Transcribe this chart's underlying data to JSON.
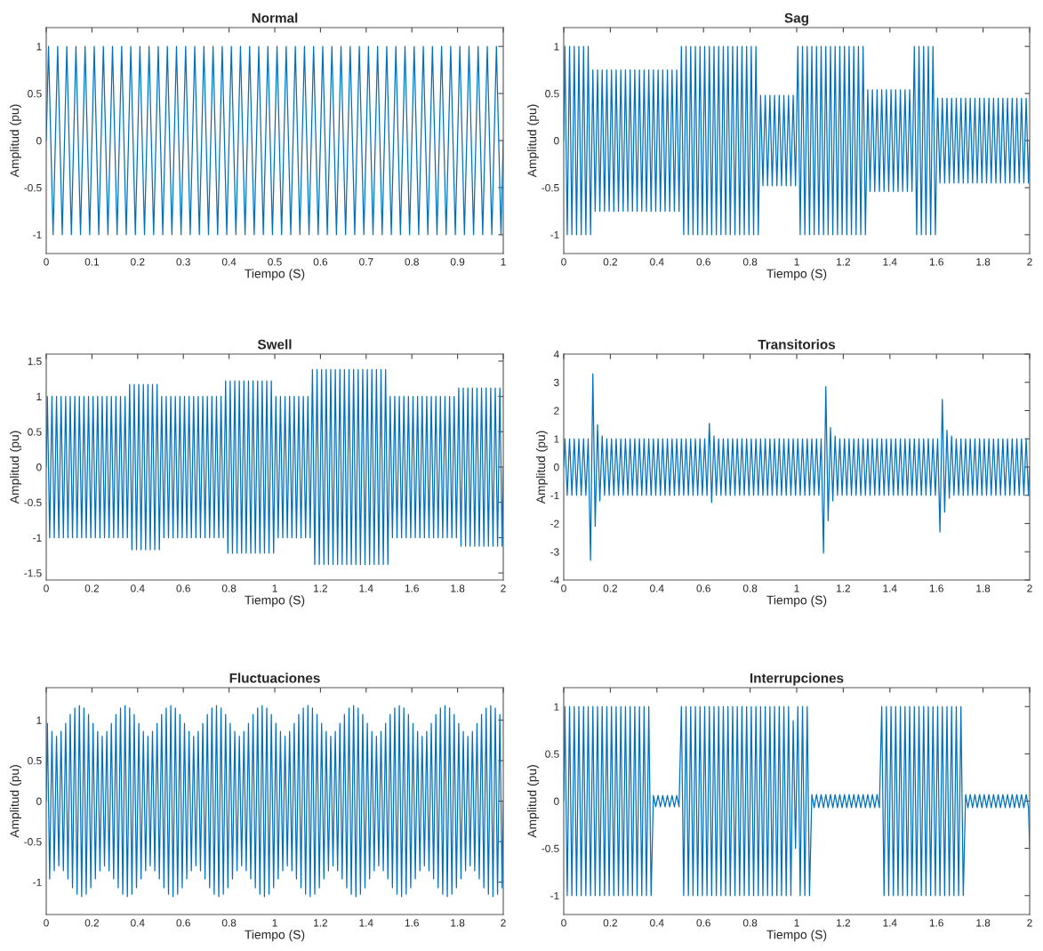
{
  "chart_data": [
    {
      "type": "line",
      "title": "Normal",
      "xlabel": "Tiempo (S)",
      "ylabel": "Amplitud (pu)",
      "color": "#0072bd",
      "xlim": [
        0,
        1
      ],
      "ylim": [
        -1.2,
        1.2
      ],
      "xticks": [
        0,
        0.1,
        0.2,
        0.3,
        0.4,
        0.5,
        0.6,
        0.7,
        0.8,
        0.9,
        1
      ],
      "yticks": [
        -1,
        -0.5,
        0,
        0.5,
        1
      ],
      "x": [
        0,
        0.005,
        0.015,
        0.025,
        0.035,
        0.045,
        0.055,
        0.065,
        0.075,
        0.085,
        0.095,
        0.105,
        0.115,
        0.125,
        0.135,
        0.145,
        0.155,
        0.165,
        0.175,
        0.185,
        0.195,
        0.205,
        0.215,
        0.225,
        0.235,
        0.245,
        0.255,
        0.265,
        0.275,
        0.285,
        0.295,
        0.305,
        0.315,
        0.325,
        0.335,
        0.345,
        0.355,
        0.365,
        0.375,
        0.385,
        0.395,
        0.405,
        0.415,
        0.425,
        0.435,
        0.445,
        0.455,
        0.465,
        0.475,
        0.485,
        0.495,
        0.505,
        0.515,
        0.525,
        0.535,
        0.545,
        0.555,
        0.565,
        0.575,
        0.585,
        0.595,
        0.605,
        0.615,
        0.625,
        0.635,
        0.645,
        0.655,
        0.665,
        0.675,
        0.685,
        0.695,
        0.705,
        0.715,
        0.725,
        0.735,
        0.745,
        0.755,
        0.765,
        0.775,
        0.785,
        0.795,
        0.805,
        0.815,
        0.825,
        0.835,
        0.845,
        0.855,
        0.865,
        0.875,
        0.885,
        0.895,
        0.905,
        0.915,
        0.925,
        0.935,
        0.945,
        0.955,
        0.965,
        0.975,
        0.985,
        0.995,
        1
      ],
      "values": [
        0,
        1,
        -1,
        1,
        -1,
        1,
        -1,
        1,
        -1,
        1,
        -1,
        1,
        -1,
        1,
        -1,
        1,
        -1,
        1,
        -1,
        1,
        -1,
        1,
        -1,
        1,
        -1,
        1,
        -1,
        1,
        -1,
        1,
        -1,
        1,
        -1,
        1,
        -1,
        1,
        -1,
        1,
        -1,
        1,
        -1,
        1,
        -1,
        1,
        -1,
        1,
        -1,
        1,
        -1,
        1,
        -1,
        1,
        -1,
        1,
        -1,
        1,
        -1,
        1,
        -1,
        1,
        -1,
        1,
        -1,
        1,
        -1,
        1,
        -1,
        1,
        -1,
        1,
        -1,
        1,
        -1,
        1,
        -1,
        1,
        -1,
        1,
        -1,
        1,
        -1,
        1,
        -1,
        1,
        -1,
        1,
        -1,
        1,
        -1,
        1,
        -1,
        1,
        -1,
        1,
        -1,
        1,
        -1,
        1,
        -1,
        1,
        -1,
        0
      ]
    },
    {
      "type": "line",
      "title": "Sag",
      "xlabel": "Tiempo (S)",
      "ylabel": "Amplitud (pu)",
      "color": "#0072bd",
      "xlim": [
        0,
        2
      ],
      "ylim": [
        -1.2,
        1.2
      ],
      "xticks": [
        0,
        0.2,
        0.4,
        0.6,
        0.8,
        1,
        1.2,
        1.4,
        1.6,
        1.8,
        2
      ],
      "yticks": [
        -1,
        -0.5,
        0,
        0.5,
        1
      ],
      "x": [
        0,
        0.005,
        0.015,
        0.025,
        0.035,
        0.045,
        0.055,
        0.065,
        0.075,
        0.085,
        0.095,
        0.105,
        0.115,
        0.125,
        0.135,
        0.145,
        0.155,
        0.165,
        0.175,
        0.185,
        0.195,
        0.205,
        0.215,
        0.225,
        0.235,
        0.245,
        0.255,
        0.265,
        0.275,
        0.285,
        0.295,
        0.305,
        0.315,
        0.325,
        0.335,
        0.345,
        0.355,
        0.365,
        0.375,
        0.385,
        0.395,
        0.405,
        0.415,
        0.425,
        0.435,
        0.445,
        0.455,
        0.465,
        0.475,
        0.485,
        0.495,
        0.505,
        0.515,
        0.525,
        0.535,
        0.545,
        0.555,
        0.565,
        0.575,
        0.585,
        0.595,
        0.605,
        0.615,
        0.625,
        0.635,
        0.645,
        0.655,
        0.665,
        0.675,
        0.685,
        0.695,
        0.705,
        0.715,
        0.725,
        0.735,
        0.745,
        0.755,
        0.765,
        0.775,
        0.785,
        0.795,
        0.805,
        0.815,
        0.825,
        0.835,
        0.845,
        0.855,
        0.865,
        0.875,
        0.885,
        0.895,
        0.905,
        0.915,
        0.925,
        0.935,
        0.945,
        0.955,
        0.965,
        0.975,
        0.985,
        0.995,
        1.005,
        1.015,
        1.025,
        1.035,
        1.045,
        1.055,
        1.065,
        1.075,
        1.085,
        1.095,
        1.105,
        1.115,
        1.125,
        1.135,
        1.145,
        1.155,
        1.165,
        1.175,
        1.185,
        1.195,
        1.205,
        1.215,
        1.225,
        1.235,
        1.245,
        1.255,
        1.265,
        1.275,
        1.285,
        1.295,
        1.305,
        1.315,
        1.325,
        1.335,
        1.345,
        1.355,
        1.365,
        1.375,
        1.385,
        1.395,
        1.405,
        1.415,
        1.425,
        1.435,
        1.445,
        1.455,
        1.465,
        1.475,
        1.485,
        1.495,
        1.505,
        1.515,
        1.525,
        1.535,
        1.545,
        1.555,
        1.565,
        1.575,
        1.585,
        1.595,
        1.605,
        1.615,
        1.625,
        1.635,
        1.645,
        1.655,
        1.665,
        1.675,
        1.685,
        1.695,
        1.705,
        1.715,
        1.725,
        1.735,
        1.745,
        1.755,
        1.765,
        1.775,
        1.785,
        1.795,
        1.805,
        1.815,
        1.825,
        1.835,
        1.845,
        1.855,
        1.865,
        1.875,
        1.885,
        1.895,
        1.905,
        1.915,
        1.925,
        1.935,
        1.945,
        1.955,
        1.965,
        1.975,
        1.985,
        1.995,
        2
      ],
      "values": [
        0,
        1,
        -1,
        1,
        -1,
        1,
        -1,
        1,
        -1,
        1,
        -1,
        1,
        -1,
        0.75,
        -0.75,
        0.75,
        -0.75,
        0.75,
        -0.75,
        0.75,
        -0.75,
        0.75,
        -0.75,
        0.75,
        -0.75,
        0.75,
        -0.75,
        0.75,
        -0.75,
        0.75,
        -0.75,
        0.75,
        -0.75,
        0.75,
        -0.75,
        0.75,
        -0.75,
        0.75,
        -0.75,
        0.75,
        -0.75,
        0.75,
        -0.75,
        0.75,
        -0.75,
        0.75,
        -0.75,
        0.75,
        -0.75,
        0.75,
        -0.75,
        1,
        -1,
        1,
        -1,
        1,
        -1,
        1,
        -1,
        1,
        -1,
        1,
        -1,
        1,
        -1,
        1,
        -1,
        1,
        -1,
        1,
        -1,
        1,
        -1,
        1,
        -1,
        1,
        -1,
        1,
        -1,
        1,
        -1,
        1,
        -1,
        1,
        -1,
        0.48,
        -0.48,
        0.48,
        -0.48,
        0.48,
        -0.48,
        0.48,
        -0.48,
        0.48,
        -0.48,
        0.48,
        -0.48,
        0.48,
        -0.48,
        0.48,
        -0.48,
        1,
        -1,
        1,
        -1,
        1,
        -1,
        1,
        -1,
        1,
        -1,
        1,
        -1,
        1,
        -1,
        1,
        -1,
        1,
        -1,
        1,
        -1,
        1,
        -1,
        1,
        -1,
        1,
        -1,
        1,
        -1,
        1,
        -1,
        0.54,
        -0.54,
        0.54,
        -0.54,
        0.54,
        -0.54,
        0.54,
        -0.54,
        0.54,
        -0.54,
        0.54,
        -0.54,
        0.54,
        -0.54,
        0.54,
        -0.54,
        0.54,
        -0.54,
        0.54,
        -0.54,
        1,
        -1,
        1,
        -1,
        1,
        -1,
        1,
        -1,
        1,
        -1,
        0.45,
        -0.45,
        0.45,
        -0.45,
        0.45,
        -0.45,
        0.45,
        -0.45,
        0.45,
        -0.45,
        0.45,
        -0.45,
        0.45,
        -0.45,
        0.45,
        -0.45,
        0.45,
        -0.45,
        0.45,
        -0.45,
        0.45,
        -0.45,
        0.45,
        -0.45,
        0.45,
        -0.45,
        0.45,
        -0.45,
        0.45,
        -0.45,
        0.45,
        -0.45,
        0.45,
        -0.45,
        0.45,
        -0.45,
        0.45,
        -0.45,
        0.45,
        -0.45,
        0
      ]
    },
    {
      "type": "line",
      "title": "Swell",
      "xlabel": "Tiempo (S)",
      "ylabel": "Amplitud (pu)",
      "color": "#0072bd",
      "xlim": [
        0,
        2
      ],
      "ylim": [
        -1.6,
        1.6
      ],
      "xticks": [
        0,
        0.2,
        0.4,
        0.6,
        0.8,
        1,
        1.2,
        1.4,
        1.6,
        1.8,
        2
      ],
      "yticks": [
        -1.5,
        -1,
        -0.5,
        0,
        0.5,
        1,
        1.5
      ],
      "x": [
        0,
        0.005,
        0.015,
        0.025,
        0.035,
        0.045,
        0.055,
        0.065,
        0.075,
        0.085,
        0.095,
        0.105,
        0.115,
        0.125,
        0.135,
        0.145,
        0.155,
        0.165,
        0.175,
        0.185,
        0.195,
        0.205,
        0.215,
        0.225,
        0.235,
        0.245,
        0.255,
        0.265,
        0.275,
        0.285,
        0.295,
        0.305,
        0.315,
        0.325,
        0.335,
        0.345,
        0.355,
        0.365,
        0.375,
        0.385,
        0.395,
        0.405,
        0.415,
        0.425,
        0.435,
        0.445,
        0.455,
        0.465,
        0.475,
        0.485,
        0.495,
        0.505,
        0.515,
        0.525,
        0.535,
        0.545,
        0.555,
        0.565,
        0.575,
        0.585,
        0.595,
        0.605,
        0.615,
        0.625,
        0.635,
        0.645,
        0.655,
        0.665,
        0.675,
        0.685,
        0.695,
        0.705,
        0.715,
        0.725,
        0.735,
        0.745,
        0.755,
        0.765,
        0.775,
        0.785,
        0.795,
        0.805,
        0.815,
        0.825,
        0.835,
        0.845,
        0.855,
        0.865,
        0.875,
        0.885,
        0.895,
        0.905,
        0.915,
        0.925,
        0.935,
        0.945,
        0.955,
        0.965,
        0.975,
        0.985,
        0.995,
        1.005,
        1.015,
        1.025,
        1.035,
        1.045,
        1.055,
        1.065,
        1.075,
        1.085,
        1.095,
        1.105,
        1.115,
        1.125,
        1.135,
        1.145,
        1.155,
        1.165,
        1.175,
        1.185,
        1.195,
        1.205,
        1.215,
        1.225,
        1.235,
        1.245,
        1.255,
        1.265,
        1.275,
        1.285,
        1.295,
        1.305,
        1.315,
        1.325,
        1.335,
        1.345,
        1.355,
        1.365,
        1.375,
        1.385,
        1.395,
        1.405,
        1.415,
        1.425,
        1.435,
        1.445,
        1.455,
        1.465,
        1.475,
        1.485,
        1.495,
        1.505,
        1.515,
        1.525,
        1.535,
        1.545,
        1.555,
        1.565,
        1.575,
        1.585,
        1.595,
        1.605,
        1.615,
        1.625,
        1.635,
        1.645,
        1.655,
        1.665,
        1.675,
        1.685,
        1.695,
        1.705,
        1.715,
        1.725,
        1.735,
        1.745,
        1.755,
        1.765,
        1.775,
        1.785,
        1.795,
        1.805,
        1.815,
        1.825,
        1.835,
        1.845,
        1.855,
        1.865,
        1.875,
        1.885,
        1.895,
        1.905,
        1.915,
        1.925,
        1.935,
        1.945,
        1.955,
        1.965,
        1.975,
        1.985,
        1.995,
        2
      ],
      "values": [
        0,
        1,
        -1,
        1,
        -1,
        1,
        -1,
        1,
        -1,
        1,
        -1,
        1,
        -1,
        1,
        -1,
        1,
        -1,
        1,
        -1,
        1,
        -1,
        1,
        -1,
        1,
        -1,
        1,
        -1,
        1,
        -1,
        1,
        -1,
        1,
        -1,
        1,
        -1,
        1,
        -1,
        1.17,
        -1.17,
        1.17,
        -1.17,
        1.17,
        -1.17,
        1.17,
        -1.17,
        1.17,
        -1.17,
        1.17,
        -1.17,
        1.17,
        -1.17,
        1,
        -1,
        1,
        -1,
        1,
        -1,
        1,
        -1,
        1,
        -1,
        1,
        -1,
        1,
        -1,
        1,
        -1,
        1,
        -1,
        1,
        -1,
        1,
        -1,
        1,
        -1,
        1,
        -1,
        1,
        -1,
        1.22,
        -1.22,
        1.22,
        -1.22,
        1.22,
        -1.22,
        1.22,
        -1.22,
        1.22,
        -1.22,
        1.22,
        -1.22,
        1.22,
        -1.22,
        1.22,
        -1.22,
        1.22,
        -1.22,
        1.22,
        -1.22,
        1.22,
        -1.22,
        1,
        -1,
        1,
        -1,
        1,
        -1,
        1,
        -1,
        1,
        -1,
        1,
        -1,
        1,
        -1,
        1,
        -1,
        1.38,
        -1.38,
        1.38,
        -1.38,
        1.38,
        -1.38,
        1.38,
        -1.38,
        1.38,
        -1.38,
        1.38,
        -1.38,
        1.38,
        -1.38,
        1.38,
        -1.38,
        1.38,
        -1.38,
        1.38,
        -1.38,
        1.38,
        -1.38,
        1.38,
        -1.38,
        1.38,
        -1.38,
        1.38,
        -1.38,
        1.38,
        -1.38,
        1.38,
        -1.38,
        1.38,
        -1.38,
        1,
        -1,
        1,
        -1,
        1,
        -1,
        1,
        -1,
        1,
        -1,
        1,
        -1,
        1,
        -1,
        1,
        -1,
        1,
        -1,
        1,
        -1,
        1,
        -1,
        1,
        -1,
        1,
        -1,
        1,
        -1,
        1,
        -1,
        1.12,
        -1.12,
        1.12,
        -1.12,
        1.12,
        -1.12,
        1.12,
        -1.12,
        1.12,
        -1.12,
        1.12,
        -1.12,
        1.12,
        -1.12,
        1.12,
        -1.12,
        1.12,
        -1.12,
        1.12,
        -1.12,
        0
      ]
    },
    {
      "type": "line",
      "title": "Transitorios",
      "xlabel": "Tiempo (S)",
      "ylabel": "Amplitud (pu)",
      "color": "#0072bd",
      "xlim": [
        0,
        2
      ],
      "ylim": [
        -4,
        4
      ],
      "xticks": [
        0,
        0.2,
        0.4,
        0.6,
        0.8,
        1,
        1.2,
        1.4,
        1.6,
        1.8,
        2
      ],
      "yticks": [
        -4,
        -3,
        -2,
        -1,
        0,
        1,
        2,
        3,
        4
      ],
      "x": [
        0,
        0.005,
        0.015,
        0.025,
        0.035,
        0.045,
        0.055,
        0.065,
        0.075,
        0.085,
        0.095,
        0.105,
        0.115,
        0.125,
        0.135,
        0.145,
        0.155,
        0.165,
        0.175,
        0.185,
        0.195,
        0.205,
        0.215,
        0.225,
        0.235,
        0.245,
        0.255,
        0.265,
        0.275,
        0.285,
        0.295,
        0.305,
        0.315,
        0.325,
        0.335,
        0.345,
        0.355,
        0.365,
        0.375,
        0.385,
        0.395,
        0.405,
        0.415,
        0.425,
        0.435,
        0.445,
        0.455,
        0.465,
        0.475,
        0.485,
        0.495,
        0.505,
        0.515,
        0.525,
        0.535,
        0.545,
        0.555,
        0.565,
        0.575,
        0.585,
        0.595,
        0.605,
        0.615,
        0.625,
        0.635,
        0.645,
        0.655,
        0.665,
        0.675,
        0.685,
        0.695,
        0.705,
        0.715,
        0.725,
        0.735,
        0.745,
        0.755,
        0.765,
        0.775,
        0.785,
        0.795,
        0.805,
        0.815,
        0.825,
        0.835,
        0.845,
        0.855,
        0.865,
        0.875,
        0.885,
        0.895,
        0.905,
        0.915,
        0.925,
        0.935,
        0.945,
        0.955,
        0.965,
        0.975,
        0.985,
        0.995,
        1.005,
        1.015,
        1.025,
        1.035,
        1.045,
        1.055,
        1.065,
        1.075,
        1.085,
        1.095,
        1.105,
        1.115,
        1.125,
        1.135,
        1.145,
        1.155,
        1.165,
        1.175,
        1.185,
        1.195,
        1.205,
        1.215,
        1.225,
        1.235,
        1.245,
        1.255,
        1.265,
        1.275,
        1.285,
        1.295,
        1.305,
        1.315,
        1.325,
        1.335,
        1.345,
        1.355,
        1.365,
        1.375,
        1.385,
        1.395,
        1.405,
        1.415,
        1.425,
        1.435,
        1.445,
        1.455,
        1.465,
        1.475,
        1.485,
        1.495,
        1.505,
        1.515,
        1.525,
        1.535,
        1.545,
        1.555,
        1.565,
        1.575,
        1.585,
        1.595,
        1.605,
        1.615,
        1.625,
        1.635,
        1.645,
        1.655,
        1.665,
        1.675,
        1.685,
        1.695,
        1.705,
        1.715,
        1.725,
        1.735,
        1.745,
        1.755,
        1.765,
        1.775,
        1.785,
        1.795,
        1.805,
        1.815,
        1.825,
        1.835,
        1.845,
        1.855,
        1.865,
        1.875,
        1.885,
        1.895,
        1.905,
        1.915,
        1.925,
        1.935,
        1.945,
        1.955,
        1.965,
        1.975,
        1.985,
        1.995,
        2
      ],
      "values": [
        0,
        1,
        -1,
        1,
        -1,
        1,
        -1,
        1,
        -1,
        1,
        -1,
        1,
        -3.3,
        3.3,
        -2.1,
        1.5,
        -1.2,
        1.1,
        -1,
        1,
        -1,
        1,
        -1,
        1,
        -1,
        1,
        -1,
        1,
        -1,
        1,
        -1,
        1,
        -1,
        1,
        -1,
        1,
        -1,
        1,
        -1,
        1,
        -1,
        1,
        -1,
        1,
        -1,
        1,
        -1,
        1,
        -1,
        1,
        -1,
        1,
        -1,
        1,
        -1,
        1,
        -1,
        1,
        -1,
        1,
        -1,
        1,
        -1,
        1.55,
        -1.25,
        1.1,
        -1,
        1,
        -1,
        1,
        -1,
        1,
        -1,
        1,
        -1,
        1,
        -1,
        1,
        -1,
        1,
        -1,
        1,
        -1,
        1,
        -1,
        1,
        -1,
        1,
        -1,
        1,
        -1,
        1,
        -1,
        1,
        -1,
        1,
        -1,
        1,
        -1,
        1,
        -1,
        1,
        -1,
        1,
        -1,
        1,
        -1,
        1,
        -1,
        1,
        -1,
        1,
        -3.05,
        2.85,
        -1.9,
        1.4,
        -1.2,
        1.1,
        -1,
        1,
        -1,
        1,
        -1,
        1,
        -1,
        1,
        -1,
        1,
        -1,
        1,
        -1,
        1,
        -1,
        1,
        -1,
        1,
        -1,
        1,
        -1,
        1,
        -1,
        1,
        -1,
        1,
        -1,
        1,
        -1,
        1,
        -1,
        1,
        -1,
        1,
        -1,
        1,
        -1,
        1,
        -1,
        1,
        -1,
        1,
        -1,
        1,
        -2.3,
        2.4,
        -1.6,
        1.3,
        -1.1,
        1.1,
        -1,
        1,
        -1,
        1,
        -1,
        1,
        -1,
        1,
        -1,
        1,
        -1,
        1,
        -1,
        1,
        -1,
        1,
        -1,
        1,
        -1,
        1,
        -1,
        1,
        -1,
        1,
        -1,
        1,
        -1,
        1,
        -1,
        1,
        -1,
        1,
        -1,
        0
      ]
    },
    {
      "type": "line",
      "title": "Fluctuaciones",
      "xlabel": "Tiempo (S)",
      "ylabel": "Amplitud (pu)",
      "color": "#0072bd",
      "xlim": [
        0,
        2
      ],
      "ylim": [
        -1.4,
        1.4
      ],
      "xticks": [
        0,
        0.2,
        0.4,
        0.6,
        0.8,
        1,
        1.2,
        1.4,
        1.6,
        1.8,
        2
      ],
      "yticks": [
        -1,
        -0.5,
        0,
        0.5,
        1
      ],
      "x": [
        0,
        0.005,
        0.015,
        0.025,
        0.035,
        0.045,
        0.055,
        0.065,
        0.075,
        0.085,
        0.095,
        0.105,
        0.115,
        0.125,
        0.135,
        0.145,
        0.155,
        0.165,
        0.175,
        0.185,
        0.195,
        0.205,
        0.215,
        0.225,
        0.235,
        0.245,
        0.255,
        0.265,
        0.275,
        0.285,
        0.295,
        0.305,
        0.315,
        0.325,
        0.335,
        0.345,
        0.355,
        0.365,
        0.375,
        0.385,
        0.395,
        0.405,
        0.415,
        0.425,
        0.435,
        0.445,
        0.455,
        0.465,
        0.475,
        0.485,
        0.495,
        0.505,
        0.515,
        0.525,
        0.535,
        0.545,
        0.555,
        0.565,
        0.575,
        0.585,
        0.595,
        0.605,
        0.615,
        0.625,
        0.635,
        0.645,
        0.655,
        0.665,
        0.675,
        0.685,
        0.695,
        0.705,
        0.715,
        0.725,
        0.735,
        0.745,
        0.755,
        0.765,
        0.775,
        0.785,
        0.795,
        0.805,
        0.815,
        0.825,
        0.835,
        0.845,
        0.855,
        0.865,
        0.875,
        0.885,
        0.895,
        0.905,
        0.915,
        0.925,
        0.935,
        0.945,
        0.955,
        0.965,
        0.975,
        0.985,
        0.995,
        1.005,
        1.015,
        1.025,
        1.035,
        1.045,
        1.055,
        1.065,
        1.075,
        1.085,
        1.095,
        1.105,
        1.115,
        1.125,
        1.135,
        1.145,
        1.155,
        1.165,
        1.175,
        1.185,
        1.195,
        1.205,
        1.215,
        1.225,
        1.235,
        1.245,
        1.255,
        1.265,
        1.275,
        1.285,
        1.295,
        1.305,
        1.315,
        1.325,
        1.335,
        1.345,
        1.355,
        1.365,
        1.375,
        1.385,
        1.395,
        1.405,
        1.415,
        1.425,
        1.435,
        1.445,
        1.455,
        1.465,
        1.475,
        1.485,
        1.495,
        1.505,
        1.515,
        1.525,
        1.535,
        1.545,
        1.555,
        1.565,
        1.575,
        1.585,
        1.595,
        1.605,
        1.615,
        1.625,
        1.635,
        1.645,
        1.655,
        1.665,
        1.675,
        1.685,
        1.695,
        1.705,
        1.715,
        1.725,
        1.735,
        1.745,
        1.755,
        1.765,
        1.775,
        1.785,
        1.795,
        1.805,
        1.815,
        1.825,
        1.835,
        1.845,
        1.855,
        1.865,
        1.875,
        1.885,
        1.895,
        1.905,
        1.915,
        1.925,
        1.935,
        1.945,
        1.955,
        1.965,
        1.975,
        1.985,
        1.995,
        2
      ],
      "values": [
        0,
        0.96,
        -0.96,
        0.86,
        -0.86,
        0.8,
        -0.8,
        0.86,
        -0.86,
        0.96,
        -0.96,
        1.07,
        -1.07,
        1.15,
        -1.15,
        1.18,
        -1.18,
        1.15,
        -1.15,
        1.07,
        -1.07,
        0.96,
        -0.96,
        0.86,
        -0.86,
        0.8,
        -0.8,
        0.86,
        -0.86,
        0.96,
        -0.96,
        1.07,
        -1.07,
        1.15,
        -1.15,
        1.18,
        -1.18,
        1.15,
        -1.15,
        1.07,
        -1.07,
        0.96,
        -0.96,
        0.86,
        -0.86,
        0.8,
        -0.8,
        0.86,
        -0.86,
        0.96,
        -0.96,
        1.07,
        -1.07,
        1.15,
        -1.15,
        1.18,
        -1.18,
        1.15,
        -1.15,
        1.07,
        -1.07,
        0.96,
        -0.96,
        0.86,
        -0.86,
        0.8,
        -0.8,
        0.86,
        -0.86,
        0.96,
        -0.96,
        1.07,
        -1.07,
        1.15,
        -1.15,
        1.18,
        -1.18,
        1.15,
        -1.15,
        1.07,
        -1.07,
        0.96,
        -0.96,
        0.86,
        -0.86,
        0.8,
        -0.8,
        0.86,
        -0.86,
        0.96,
        -0.96,
        1.07,
        -1.07,
        1.15,
        -1.15,
        1.18,
        -1.18,
        1.15,
        -1.15,
        1.07,
        -1.07,
        0.96,
        -0.96,
        0.86,
        -0.86,
        0.8,
        -0.8,
        0.86,
        -0.86,
        0.96,
        -0.96,
        1.07,
        -1.07,
        1.15,
        -1.15,
        1.18,
        -1.18,
        1.15,
        -1.15,
        1.07,
        -1.07,
        0.96,
        -0.96,
        0.86,
        -0.86,
        0.8,
        -0.8,
        0.86,
        -0.86,
        0.96,
        -0.96,
        1.07,
        -1.07,
        1.15,
        -1.15,
        1.18,
        -1.18,
        1.15,
        -1.15,
        1.07,
        -1.07,
        0.96,
        -0.96,
        0.86,
        -0.86,
        0.8,
        -0.8,
        0.86,
        -0.86,
        0.96,
        -0.96,
        1.07,
        -1.07,
        1.15,
        -1.15,
        1.18,
        -1.18,
        1.15,
        -1.15,
        1.07,
        -1.07,
        0.96,
        -0.96,
        0.86,
        -0.86,
        0.8,
        -0.8,
        0.86,
        -0.86,
        0.96,
        -0.96,
        1.07,
        -1.07,
        1.15,
        -1.15,
        1.18,
        -1.18,
        1.15,
        -1.15,
        1.07,
        -1.07,
        0.96,
        -0.96,
        0.86,
        -0.86,
        0.8,
        -0.8,
        0.86,
        -0.86,
        0.96,
        -0.96,
        1.07,
        -1.07,
        1.15,
        -1.15,
        1.18,
        -1.18,
        1.15,
        -1.15,
        1.07,
        -1.07,
        0
      ]
    },
    {
      "type": "line",
      "title": "Interrupciones",
      "xlabel": "Tiempo (S)",
      "ylabel": "Amplitud (pu)",
      "color": "#0072bd",
      "xlim": [
        0,
        2
      ],
      "ylim": [
        -1.2,
        1.2
      ],
      "xticks": [
        0,
        0.2,
        0.4,
        0.6,
        0.8,
        1,
        1.2,
        1.4,
        1.6,
        1.8,
        2
      ],
      "yticks": [
        -1,
        -0.5,
        0,
        0.5,
        1
      ],
      "x": [
        0,
        0.005,
        0.015,
        0.025,
        0.035,
        0.045,
        0.055,
        0.065,
        0.075,
        0.085,
        0.095,
        0.105,
        0.115,
        0.125,
        0.135,
        0.145,
        0.155,
        0.165,
        0.175,
        0.185,
        0.195,
        0.205,
        0.215,
        0.225,
        0.235,
        0.245,
        0.255,
        0.265,
        0.275,
        0.285,
        0.295,
        0.305,
        0.315,
        0.325,
        0.335,
        0.345,
        0.355,
        0.365,
        0.375,
        0.385,
        0.395,
        0.405,
        0.415,
        0.425,
        0.435,
        0.445,
        0.455,
        0.465,
        0.475,
        0.485,
        0.495,
        0.505,
        0.515,
        0.525,
        0.535,
        0.545,
        0.555,
        0.565,
        0.575,
        0.585,
        0.595,
        0.605,
        0.615,
        0.625,
        0.635,
        0.645,
        0.655,
        0.665,
        0.675,
        0.685,
        0.695,
        0.705,
        0.715,
        0.725,
        0.735,
        0.745,
        0.755,
        0.765,
        0.775,
        0.785,
        0.795,
        0.805,
        0.815,
        0.825,
        0.835,
        0.845,
        0.855,
        0.865,
        0.875,
        0.885,
        0.895,
        0.905,
        0.915,
        0.925,
        0.935,
        0.945,
        0.955,
        0.965,
        0.975,
        0.985,
        0.995,
        1.005,
        1.015,
        1.025,
        1.035,
        1.045,
        1.055,
        1.065,
        1.075,
        1.085,
        1.095,
        1.105,
        1.115,
        1.125,
        1.135,
        1.145,
        1.155,
        1.165,
        1.175,
        1.185,
        1.195,
        1.205,
        1.215,
        1.225,
        1.235,
        1.245,
        1.255,
        1.265,
        1.275,
        1.285,
        1.295,
        1.305,
        1.315,
        1.325,
        1.335,
        1.345,
        1.355,
        1.365,
        1.375,
        1.385,
        1.395,
        1.405,
        1.415,
        1.425,
        1.435,
        1.445,
        1.455,
        1.465,
        1.475,
        1.485,
        1.495,
        1.505,
        1.515,
        1.525,
        1.535,
        1.545,
        1.555,
        1.565,
        1.575,
        1.585,
        1.595,
        1.605,
        1.615,
        1.625,
        1.635,
        1.645,
        1.655,
        1.665,
        1.675,
        1.685,
        1.695,
        1.705,
        1.715,
        1.725,
        1.735,
        1.745,
        1.755,
        1.765,
        1.775,
        1.785,
        1.795,
        1.805,
        1.815,
        1.825,
        1.835,
        1.845,
        1.855,
        1.865,
        1.875,
        1.885,
        1.895,
        1.905,
        1.915,
        1.925,
        1.935,
        1.945,
        1.955,
        1.965,
        1.975,
        1.985,
        1.995,
        2
      ],
      "values": [
        0,
        1,
        -1,
        1,
        -1,
        1,
        -1,
        1,
        -1,
        1,
        -1,
        1,
        -1,
        1,
        -1,
        1,
        -1,
        1,
        -1,
        1,
        -1,
        1,
        -1,
        1,
        -1,
        1,
        -1,
        1,
        -1,
        1,
        -1,
        1,
        -1,
        1,
        -1,
        1,
        -1,
        1,
        -1,
        0.06,
        -0.06,
        0.06,
        -0.06,
        0.06,
        -0.06,
        0.06,
        -0.06,
        0.06,
        -0.06,
        0.06,
        -0.06,
        1,
        -1,
        1,
        -1,
        1,
        -1,
        1,
        -1,
        1,
        -1,
        1,
        -1,
        1,
        -1,
        1,
        -1,
        1,
        -1,
        1,
        -1,
        1,
        -1,
        1,
        -1,
        1,
        -1,
        1,
        -1,
        1,
        -1,
        1,
        -1,
        1,
        -1,
        1,
        -1,
        1,
        -1,
        1,
        -1,
        1,
        -1,
        1,
        -1,
        1,
        -1,
        1,
        -1,
        0.85,
        -0.5,
        1,
        -1,
        1,
        -1,
        1,
        -1,
        0.07,
        -0.07,
        0.07,
        -0.07,
        0.07,
        -0.07,
        0.07,
        -0.07,
        0.07,
        -0.07,
        0.07,
        -0.07,
        0.07,
        -0.07,
        0.07,
        -0.07,
        0.07,
        -0.07,
        0.07,
        -0.07,
        0.07,
        -0.07,
        0.07,
        -0.07,
        0.07,
        -0.07,
        0.07,
        -0.07,
        0.07,
        -0.07,
        1,
        -1,
        1,
        -1,
        1,
        -1,
        1,
        -1,
        1,
        -1,
        1,
        -1,
        1,
        -1,
        1,
        -1,
        1,
        -1,
        1,
        -1,
        1,
        -1,
        1,
        -1,
        1,
        -1,
        1,
        -1,
        1,
        -1,
        1,
        -1,
        1,
        -1,
        1,
        -1,
        0.07,
        -0.07,
        0.07,
        -0.07,
        0.07,
        -0.07,
        0.07,
        -0.07,
        0.07,
        -0.07,
        0.07,
        -0.07,
        0.07,
        -0.07,
        0.07,
        -0.07,
        0.07,
        -0.07,
        0.07,
        -0.07,
        0.07,
        -0.07,
        0.07,
        -0.07,
        0.07,
        -0.07,
        0.07,
        -0.07,
        -0.5
      ]
    }
  ]
}
